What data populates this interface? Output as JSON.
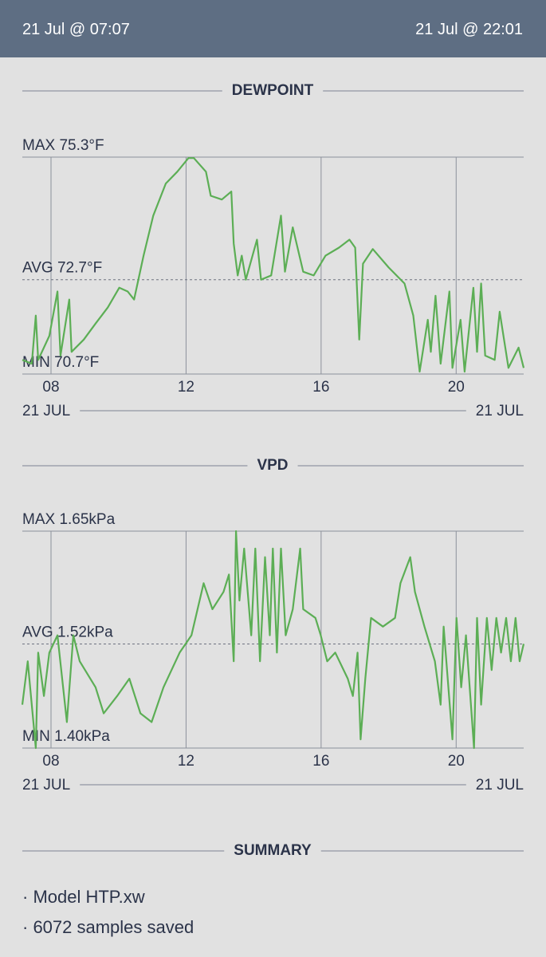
{
  "header": {
    "start": "21 Jul @ 07:07",
    "end": "21 Jul @ 22:01"
  },
  "chart_data": [
    {
      "type": "line",
      "title": "DEWPOINT",
      "color": "#5cae55",
      "xlim": [
        7.15,
        22.0
      ],
      "xticks": [
        {
          "value": 8,
          "label": "08"
        },
        {
          "value": 12,
          "label": "12"
        },
        {
          "value": 16,
          "label": "16"
        },
        {
          "value": 20,
          "label": "20"
        }
      ],
      "x_start_label": "21 JUL",
      "x_end_label": "21 JUL",
      "ylim": [
        70.7,
        75.3
      ],
      "yticks": [
        {
          "value": 75.3,
          "label": "MAX 75.3°F"
        },
        {
          "value": 72.7,
          "label": "AVG 72.7°F"
        },
        {
          "value": 70.7,
          "label": "MIN 70.7°F"
        }
      ],
      "x": [
        7.15,
        7.43,
        7.55,
        7.62,
        7.95,
        8.19,
        8.28,
        8.54,
        8.61,
        8.97,
        9.32,
        9.68,
        10.02,
        10.27,
        10.46,
        10.74,
        11.03,
        11.4,
        11.74,
        12.07,
        12.23,
        12.59,
        12.73,
        13.06,
        13.34,
        13.41,
        13.53,
        13.65,
        13.77,
        14.1,
        14.22,
        14.52,
        14.81,
        14.93,
        15.16,
        15.47,
        15.78,
        16.13,
        16.53,
        16.84,
        17.01,
        17.13,
        17.24,
        17.53,
        18.0,
        18.47,
        18.73,
        18.92,
        19.16,
        19.25,
        19.39,
        19.54,
        19.8,
        19.89,
        20.13,
        20.25,
        20.51,
        20.62,
        20.74,
        20.86,
        21.14,
        21.29,
        21.55,
        21.85,
        22.0
      ],
      "values": [
        71.0,
        70.92,
        71.94,
        71.0,
        71.51,
        72.45,
        71.09,
        72.28,
        71.17,
        71.43,
        71.77,
        72.11,
        72.53,
        72.45,
        72.28,
        73.21,
        74.06,
        74.74,
        74.99,
        75.28,
        75.28,
        74.99,
        74.48,
        74.4,
        74.57,
        73.47,
        72.79,
        73.21,
        72.7,
        73.55,
        72.7,
        72.79,
        74.06,
        72.87,
        73.81,
        72.87,
        72.79,
        73.21,
        73.38,
        73.55,
        73.38,
        71.43,
        73.04,
        73.35,
        72.96,
        72.62,
        71.94,
        70.75,
        71.85,
        71.17,
        72.36,
        70.92,
        72.45,
        70.83,
        71.85,
        70.75,
        72.53,
        71.17,
        72.62,
        71.09,
        71.0,
        72.02,
        70.83,
        71.26,
        70.83
      ]
    },
    {
      "type": "line",
      "title": "VPD",
      "color": "#5cae55",
      "xlim": [
        7.15,
        22.0
      ],
      "xticks": [
        {
          "value": 8,
          "label": "08"
        },
        {
          "value": 12,
          "label": "12"
        },
        {
          "value": 16,
          "label": "16"
        },
        {
          "value": 20,
          "label": "20"
        }
      ],
      "x_start_label": "21 JUL",
      "x_end_label": "21 JUL",
      "ylim": [
        1.4,
        1.65
      ],
      "yticks": [
        {
          "value": 1.65,
          "label": "MAX 1.65kPa"
        },
        {
          "value": 1.52,
          "label": "AVG 1.52kPa"
        },
        {
          "value": 1.4,
          "label": "MIN 1.40kPa"
        }
      ],
      "x": [
        7.15,
        7.31,
        7.55,
        7.62,
        7.79,
        7.95,
        8.19,
        8.47,
        8.66,
        8.85,
        9.32,
        9.56,
        9.96,
        10.32,
        10.65,
        10.98,
        11.33,
        11.81,
        12.16,
        12.52,
        12.78,
        13.11,
        13.27,
        13.41,
        13.48,
        13.58,
        13.72,
        13.93,
        14.05,
        14.19,
        14.34,
        14.48,
        14.57,
        14.69,
        14.81,
        14.95,
        15.16,
        15.38,
        15.47,
        15.83,
        15.99,
        16.18,
        16.42,
        16.79,
        16.94,
        17.08,
        17.17,
        17.31,
        17.48,
        17.83,
        18.19,
        18.35,
        18.64,
        18.78,
        19.06,
        19.37,
        19.54,
        19.63,
        19.89,
        20.01,
        20.15,
        20.29,
        20.53,
        20.62,
        20.74,
        20.91,
        21.05,
        21.19,
        21.33,
        21.48,
        21.62,
        21.76,
        21.88,
        22.0
      ],
      "values": [
        1.45,
        1.5,
        1.4,
        1.51,
        1.46,
        1.51,
        1.53,
        1.43,
        1.53,
        1.5,
        1.47,
        1.44,
        1.46,
        1.48,
        1.44,
        1.43,
        1.47,
        1.51,
        1.53,
        1.59,
        1.56,
        1.58,
        1.6,
        1.5,
        1.65,
        1.57,
        1.63,
        1.53,
        1.63,
        1.5,
        1.62,
        1.53,
        1.63,
        1.51,
        1.63,
        1.53,
        1.56,
        1.63,
        1.56,
        1.55,
        1.53,
        1.5,
        1.51,
        1.48,
        1.46,
        1.51,
        1.41,
        1.48,
        1.55,
        1.54,
        1.55,
        1.59,
        1.62,
        1.58,
        1.54,
        1.5,
        1.45,
        1.54,
        1.41,
        1.55,
        1.47,
        1.53,
        1.4,
        1.55,
        1.45,
        1.55,
        1.49,
        1.55,
        1.51,
        1.55,
        1.5,
        1.55,
        1.5,
        1.52
      ]
    }
  ],
  "summary": {
    "title": "SUMMARY",
    "items": [
      "· Model HTP.xw",
      "· 6072 samples saved"
    ]
  }
}
